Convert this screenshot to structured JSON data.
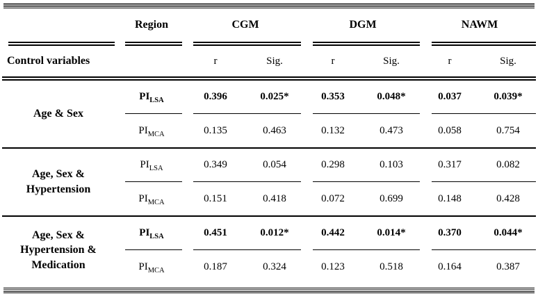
{
  "table": {
    "header": {
      "region_label": "Region",
      "group_labels": [
        "CGM",
        "DGM",
        "NAWM"
      ],
      "control_label": "Control variables",
      "r_label": "r",
      "sig_label": "Sig."
    },
    "groups": [
      {
        "label_lines": [
          "Age & Sex"
        ],
        "rows": [
          {
            "region": "PI",
            "region_sub": "LSA",
            "values": [
              "0.396",
              "0.025*",
              "0.353",
              "0.048*",
              "0.037",
              "0.039*"
            ]
          },
          {
            "region": "PI",
            "region_sub": "MCA",
            "values": [
              "0.135",
              "0.463",
              "0.132",
              "0.473",
              "0.058",
              "0.754"
            ]
          }
        ]
      },
      {
        "label_lines": [
          "Age, Sex &",
          "Hypertension"
        ],
        "rows": [
          {
            "region": "PI",
            "region_sub": "LSA",
            "values": [
              "0.349",
              "0.054",
              "0.298",
              "0.103",
              "0.317",
              "0.082"
            ]
          },
          {
            "region": "PI",
            "region_sub": "MCA",
            "values": [
              "0.151",
              "0.418",
              "0.072",
              "0.699",
              "0.148",
              "0.428"
            ]
          }
        ]
      },
      {
        "label_lines": [
          "Age, Sex &",
          "Hypertension &",
          "Medication"
        ],
        "rows": [
          {
            "region": "PI",
            "region_sub": "LSA",
            "values": [
              "0.451",
              "0.012*",
              "0.442",
              "0.014*",
              "0.370",
              "0.044*"
            ]
          },
          {
            "region": "PI",
            "region_sub": "MCA",
            "values": [
              "0.187",
              "0.324",
              "0.123",
              "0.518",
              "0.164",
              "0.387"
            ]
          }
        ]
      }
    ]
  },
  "chart_data": {
    "type": "table",
    "columns": [
      "Control variables",
      "Region",
      "CGM r",
      "CGM Sig.",
      "DGM r",
      "DGM Sig.",
      "NAWM r",
      "NAWM Sig."
    ],
    "rows": [
      [
        "Age & Sex",
        "PI LSA",
        "0.396",
        "0.025*",
        "0.353",
        "0.048*",
        "0.037",
        "0.039*"
      ],
      [
        "Age & Sex",
        "PI MCA",
        "0.135",
        "0.463",
        "0.132",
        "0.473",
        "0.058",
        "0.754"
      ],
      [
        "Age, Sex & Hypertension",
        "PI LSA",
        "0.349",
        "0.054",
        "0.298",
        "0.103",
        "0.317",
        "0.082"
      ],
      [
        "Age, Sex & Hypertension",
        "PI MCA",
        "0.151",
        "0.418",
        "0.072",
        "0.699",
        "0.148",
        "0.428"
      ],
      [
        "Age, Sex & Hypertension & Medication",
        "PI LSA",
        "0.451",
        "0.012*",
        "0.442",
        "0.014*",
        "0.370",
        "0.044*"
      ],
      [
        "Age, Sex & Hypertension & Medication",
        "PI MCA",
        "0.187",
        "0.324",
        "0.123",
        "0.518",
        "0.164",
        "0.387"
      ]
    ]
  }
}
